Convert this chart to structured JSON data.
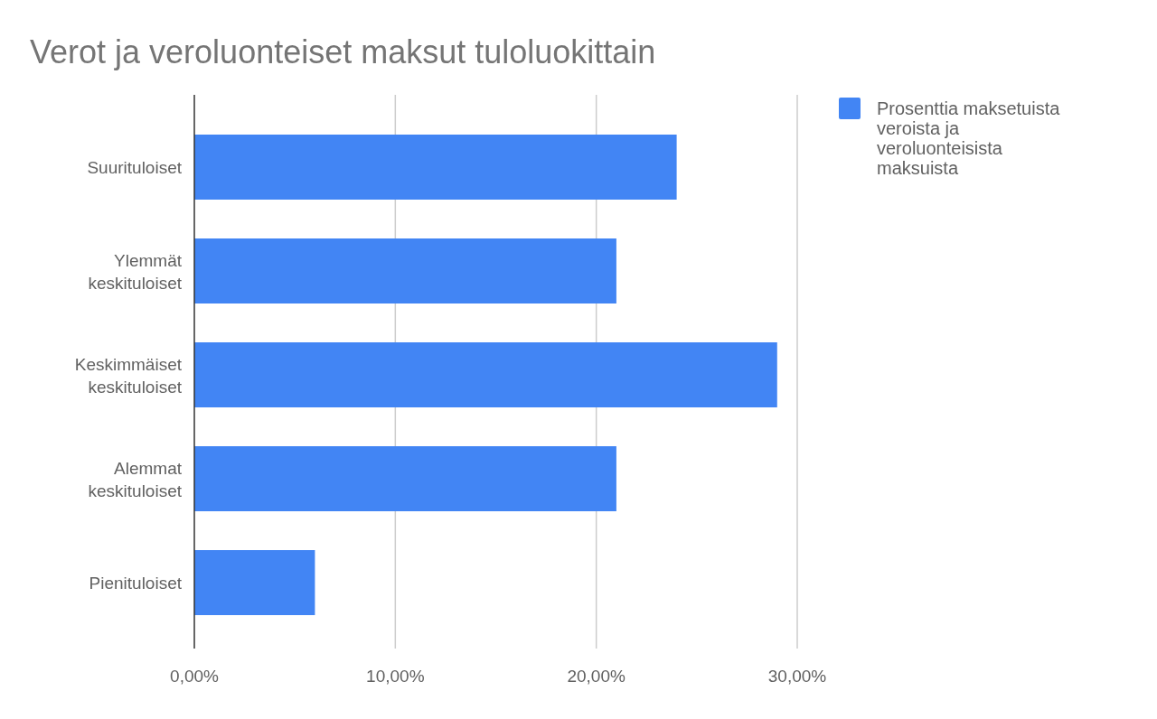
{
  "chart_data": {
    "type": "bar",
    "orientation": "horizontal",
    "title": "Verot ja veroluonteiset maksut tuloluokittain",
    "categories": [
      "Suurituloiset",
      "Ylemmät keskituloiset",
      "Keskimmäiset keskituloiset",
      "Alemmat keskituloiset",
      "Pienituloiset"
    ],
    "series": [
      {
        "name": "Prosenttia maksetuista veroista ja veroluonteisista maksuista",
        "color": "#4285f4",
        "values": [
          24,
          21,
          29,
          21,
          6
        ]
      }
    ],
    "xlim": [
      0,
      30
    ],
    "xticks": [
      {
        "value": 0,
        "label": "0,00%"
      },
      {
        "value": 10,
        "label": "10,00%"
      },
      {
        "value": 20,
        "label": "20,00%"
      },
      {
        "value": 30,
        "label": "30,00%"
      }
    ],
    "grid": "x",
    "legend": "right"
  }
}
